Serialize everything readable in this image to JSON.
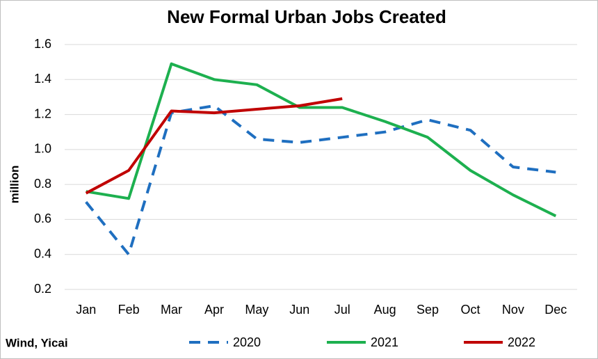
{
  "chart_data": {
    "type": "line",
    "title": "New Formal Urban Jobs Created",
    "ylabel": "million",
    "source": "Wind, Yicai",
    "categories": [
      "Jan",
      "Feb",
      "Mar",
      "Apr",
      "May",
      "Jun",
      "Jul",
      "Aug",
      "Sep",
      "Oct",
      "Nov",
      "Dec"
    ],
    "series": [
      {
        "name": "2020",
        "color": "#1f6fc0",
        "line_style": "dashed",
        "values": [
          0.7,
          0.4,
          1.21,
          1.25,
          1.06,
          1.04,
          1.07,
          1.1,
          1.17,
          1.11,
          0.9,
          0.87
        ]
      },
      {
        "name": "2021",
        "color": "#1db04f",
        "line_style": "solid",
        "values": [
          0.76,
          0.72,
          1.49,
          1.4,
          1.37,
          1.24,
          1.24,
          1.16,
          1.07,
          0.88,
          0.74,
          0.62
        ]
      },
      {
        "name": "2022",
        "color": "#c00000",
        "line_style": "solid",
        "values": [
          0.75,
          0.88,
          1.22,
          1.21,
          1.23,
          1.25,
          1.29,
          null,
          null,
          null,
          null,
          null
        ]
      }
    ],
    "ylim": [
      0.2,
      1.6
    ],
    "yticks": [
      0.2,
      0.4,
      0.6,
      0.8,
      {
        "value": 1,
        "label": "1.0"
      },
      1.2,
      1.4,
      1.6
    ],
    "grid": true,
    "legend": "bottom"
  }
}
